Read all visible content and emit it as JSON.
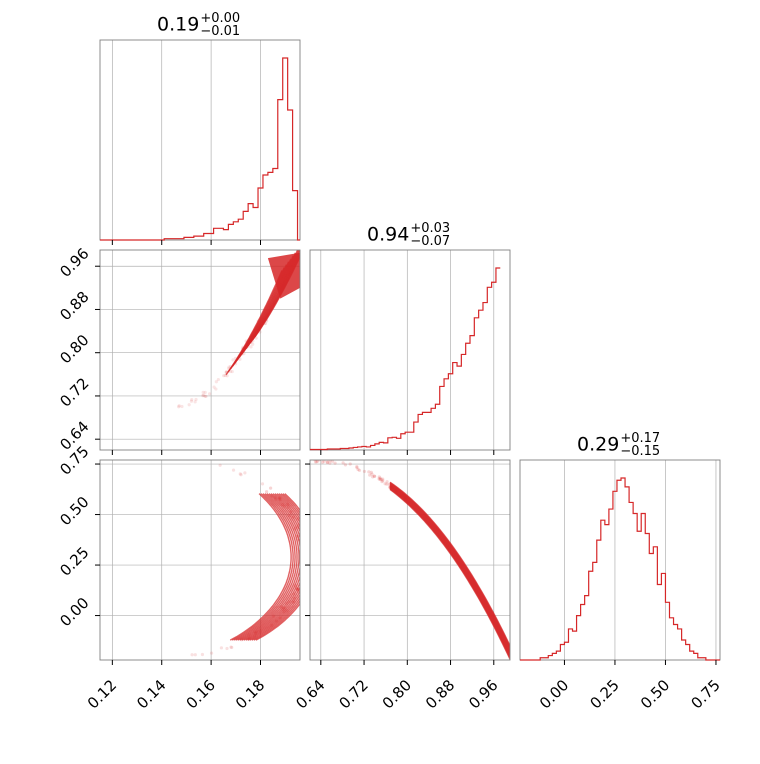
{
  "chart_data": [
    {
      "panel": "hist-0",
      "type": "histogram",
      "title": {
        "value": "0.19",
        "upper": "+0.00",
        "lower": "−0.01"
      },
      "xlim": [
        0.115,
        0.196
      ],
      "bins": {
        "start": 0.115,
        "width": 0.002,
        "counts": [
          0,
          0,
          0,
          0,
          0,
          0,
          0,
          0,
          0,
          0,
          0,
          0,
          0,
          1,
          1,
          1,
          1,
          2,
          2,
          3,
          3,
          5,
          5,
          9,
          9,
          8,
          12,
          14,
          16,
          22,
          28,
          25,
          40,
          50,
          52,
          55,
          108,
          140,
          100,
          38,
          0
        ]
      }
    },
    {
      "panel": "hist-1",
      "type": "histogram",
      "title": {
        "value": "0.94",
        "upper": "+0.03",
        "lower": "−0.07"
      },
      "xlim": [
        0.62,
        0.99
      ],
      "bins": {
        "start": 0.62,
        "width": 0.008,
        "counts": [
          1,
          1,
          1,
          1,
          2,
          2,
          2,
          3,
          3,
          4,
          5,
          6,
          7,
          6,
          9,
          12,
          15,
          14,
          24,
          25,
          23,
          32,
          35,
          35,
          55,
          70,
          74,
          74,
          82,
          90,
          125,
          140,
          150,
          172,
          165,
          188,
          210,
          225,
          260,
          275,
          290,
          320,
          330,
          358
        ]
      }
    },
    {
      "panel": "hist-2",
      "type": "histogram",
      "title": {
        "value": "0.29",
        "upper": "+0.17",
        "lower": "−0.15"
      },
      "xlim": [
        -0.22,
        0.77
      ],
      "bins": {
        "start": -0.22,
        "width": 0.02,
        "counts": [
          0,
          0,
          0,
          0,
          0,
          1,
          1,
          2,
          3,
          4,
          7,
          8,
          14,
          13,
          20,
          25,
          29,
          40,
          44,
          54,
          63,
          61,
          68,
          76,
          81,
          82,
          78,
          71,
          66,
          58,
          66,
          57,
          48,
          51,
          34,
          39,
          26,
          19,
          16,
          14,
          9,
          7,
          4,
          3,
          1,
          1,
          0,
          0,
          0,
          0
        ]
      }
    },
    {
      "panel": "scatter-1-0",
      "type": "scatter",
      "xlim": [
        0.115,
        0.196
      ],
      "ylim": [
        0.62,
        0.99
      ],
      "x_tick_labels": [],
      "y_tick_labels": [
        "0.64",
        "0.72",
        "0.80",
        "0.88",
        "0.96"
      ]
    },
    {
      "panel": "scatter-2-0",
      "type": "scatter",
      "xlim": [
        0.115,
        0.196
      ],
      "ylim": [
        -0.22,
        0.77
      ],
      "x_tick_labels": [
        "0.12",
        "0.14",
        "0.16",
        "0.18"
      ],
      "y_tick_labels": [
        "0.00",
        "0.25",
        "0.50",
        "0.75"
      ]
    },
    {
      "panel": "scatter-2-1",
      "type": "scatter",
      "xlim": [
        0.62,
        0.99
      ],
      "ylim": [
        -0.22,
        0.77
      ],
      "x_tick_labels": [
        "0.64",
        "0.72",
        "0.80",
        "0.88",
        "0.96"
      ],
      "y_tick_labels": []
    }
  ],
  "hist_x_tick_labels": {
    "hist-2": [
      "0.00",
      "0.25",
      "0.50",
      "0.75"
    ]
  },
  "grid": true,
  "colors": {
    "series": "#d62728",
    "grid": "#b0b0b0",
    "axes": "#000000",
    "frame": "#808080"
  }
}
